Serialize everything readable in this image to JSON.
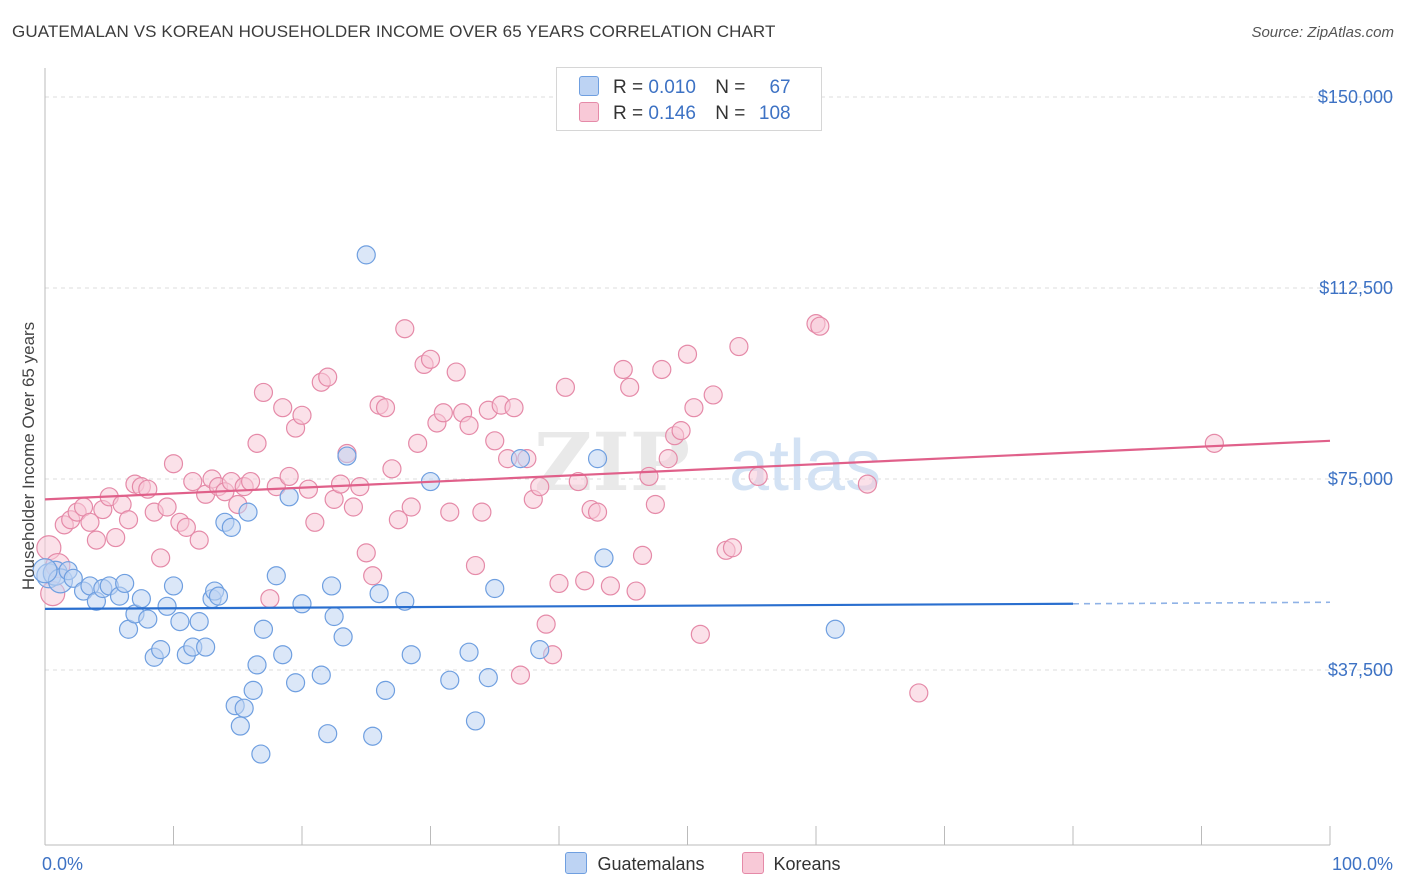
{
  "title": "GUATEMALAN VS KOREAN HOUSEHOLDER INCOME OVER 65 YEARS CORRELATION CHART",
  "source": "Source: ZipAtlas.com",
  "watermark": {
    "zip": "ZIP",
    "atlas": "atlas"
  },
  "legend_top": [
    {
      "r_label": "R =",
      "r_value": "0.010",
      "n_label": "N =",
      "n_value": "67",
      "color": "#6f9fe0",
      "fill": "#bdd3f3"
    },
    {
      "r_label": "R =",
      "r_value": "0.146",
      "n_label": "N =",
      "n_value": "108",
      "color": "#e58aa8",
      "fill": "#f8c9d7"
    }
  ],
  "chart_data": {
    "type": "scatter",
    "title": "GUATEMALAN VS KOREAN HOUSEHOLDER INCOME OVER 65 YEARS CORRELATION CHART",
    "xlabel": "",
    "ylabel": "Householder Income Over 65 years",
    "xlim": [
      0,
      100
    ],
    "ylim": [
      15000,
      157500
    ],
    "x_tick_labels": [
      "0.0%",
      "100.0%"
    ],
    "y_ticks": [
      37500,
      75000,
      112500,
      150000
    ],
    "y_tick_labels": [
      "$37,500",
      "$75,000",
      "$112,500",
      "$150,000"
    ],
    "legend_position": "bottom-center",
    "grid": true,
    "series": [
      {
        "name": "Guatemalans",
        "color": "#6f9fe0",
        "fill": "#bdd3f3",
        "trend": {
          "x0": 0,
          "y0": 49500,
          "x1": 80,
          "y1": 50500,
          "dash_to": 100,
          "dash_y": 50800
        },
        "points": [
          [
            0.3,
            56000
          ],
          [
            0.8,
            56500
          ],
          [
            1.2,
            55000
          ],
          [
            1.8,
            57000
          ],
          [
            2.2,
            55500
          ],
          [
            3.0,
            53000
          ],
          [
            3.5,
            54000
          ],
          [
            4.0,
            51000
          ],
          [
            4.5,
            53500
          ],
          [
            5.0,
            54000
          ],
          [
            5.8,
            52000
          ],
          [
            6.2,
            54500
          ],
          [
            6.5,
            45500
          ],
          [
            7.0,
            48500
          ],
          [
            7.5,
            51500
          ],
          [
            8.0,
            47500
          ],
          [
            8.5,
            40000
          ],
          [
            9.0,
            41500
          ],
          [
            9.5,
            50000
          ],
          [
            10.0,
            54000
          ],
          [
            10.5,
            47000
          ],
          [
            11.0,
            40500
          ],
          [
            11.5,
            42000
          ],
          [
            12.0,
            47000
          ],
          [
            12.5,
            42000
          ],
          [
            13.0,
            51500
          ],
          [
            13.2,
            53000
          ],
          [
            13.5,
            52000
          ],
          [
            14.0,
            66500
          ],
          [
            14.5,
            65500
          ],
          [
            14.8,
            30500
          ],
          [
            15.2,
            26500
          ],
          [
            15.5,
            30000
          ],
          [
            15.8,
            68500
          ],
          [
            16.2,
            33500
          ],
          [
            16.5,
            38500
          ],
          [
            16.8,
            21000
          ],
          [
            17.0,
            45500
          ],
          [
            18.0,
            56000
          ],
          [
            18.5,
            40500
          ],
          [
            19.0,
            71500
          ],
          [
            19.5,
            35000
          ],
          [
            20.0,
            50500
          ],
          [
            21.5,
            36500
          ],
          [
            22.0,
            25000
          ],
          [
            22.3,
            54000
          ],
          [
            22.5,
            48000
          ],
          [
            23.2,
            44000
          ],
          [
            23.5,
            79500
          ],
          [
            25.0,
            119000
          ],
          [
            25.5,
            24500
          ],
          [
            26.0,
            52500
          ],
          [
            26.5,
            33500
          ],
          [
            28.0,
            51000
          ],
          [
            28.5,
            40500
          ],
          [
            30.0,
            74500
          ],
          [
            31.5,
            35500
          ],
          [
            33.0,
            41000
          ],
          [
            33.5,
            27500
          ],
          [
            34.5,
            36000
          ],
          [
            35.0,
            53500
          ],
          [
            37.0,
            79000
          ],
          [
            38.5,
            41500
          ],
          [
            43.0,
            79000
          ],
          [
            43.5,
            59500
          ],
          [
            61.5,
            45500
          ],
          [
            0.0,
            57000
          ]
        ]
      },
      {
        "name": "Koreans",
        "color": "#e58aa8",
        "fill": "#f8c9d7",
        "trend": {
          "x0": 0,
          "y0": 71000,
          "x1": 100,
          "y1": 82500
        },
        "points": [
          [
            0.3,
            61500
          ],
          [
            0.6,
            52500
          ],
          [
            1.0,
            58000
          ],
          [
            1.5,
            66000
          ],
          [
            2.0,
            67000
          ],
          [
            2.5,
            68500
          ],
          [
            3.0,
            69500
          ],
          [
            3.5,
            66500
          ],
          [
            4.0,
            63000
          ],
          [
            4.5,
            69000
          ],
          [
            5.0,
            71500
          ],
          [
            5.5,
            63500
          ],
          [
            6.0,
            70000
          ],
          [
            6.5,
            67000
          ],
          [
            7.0,
            74000
          ],
          [
            7.5,
            73500
          ],
          [
            8.0,
            73000
          ],
          [
            8.5,
            68500
          ],
          [
            9.0,
            59500
          ],
          [
            9.5,
            69500
          ],
          [
            10.0,
            78000
          ],
          [
            10.5,
            66500
          ],
          [
            11.0,
            65500
          ],
          [
            11.5,
            74500
          ],
          [
            12.0,
            63000
          ],
          [
            12.5,
            72000
          ],
          [
            13.0,
            75000
          ],
          [
            13.5,
            73500
          ],
          [
            14.0,
            72500
          ],
          [
            14.5,
            74500
          ],
          [
            15.0,
            70000
          ],
          [
            15.5,
            73500
          ],
          [
            16.0,
            74500
          ],
          [
            16.5,
            82000
          ],
          [
            17.0,
            92000
          ],
          [
            17.5,
            51500
          ],
          [
            18.0,
            73500
          ],
          [
            18.5,
            89000
          ],
          [
            19.0,
            75500
          ],
          [
            19.5,
            85000
          ],
          [
            20.0,
            87500
          ],
          [
            20.5,
            73000
          ],
          [
            21.0,
            66500
          ],
          [
            21.5,
            94000
          ],
          [
            22.0,
            95000
          ],
          [
            22.5,
            71000
          ],
          [
            23.0,
            74000
          ],
          [
            23.5,
            80000
          ],
          [
            24.0,
            69500
          ],
          [
            24.5,
            73500
          ],
          [
            25.0,
            60500
          ],
          [
            25.5,
            56000
          ],
          [
            26.0,
            89500
          ],
          [
            26.5,
            89000
          ],
          [
            27.0,
            77000
          ],
          [
            27.5,
            67000
          ],
          [
            28.0,
            104500
          ],
          [
            28.5,
            69500
          ],
          [
            29.0,
            82000
          ],
          [
            29.5,
            97500
          ],
          [
            30.0,
            98500
          ],
          [
            30.5,
            86000
          ],
          [
            31.0,
            88000
          ],
          [
            31.5,
            68500
          ],
          [
            32.0,
            96000
          ],
          [
            32.5,
            88000
          ],
          [
            33.0,
            85500
          ],
          [
            33.5,
            58000
          ],
          [
            34.0,
            68500
          ],
          [
            34.5,
            88500
          ],
          [
            35.0,
            82500
          ],
          [
            35.5,
            89500
          ],
          [
            36.0,
            79000
          ],
          [
            36.5,
            89000
          ],
          [
            37.0,
            36500
          ],
          [
            37.5,
            79000
          ],
          [
            38.0,
            71000
          ],
          [
            38.5,
            73500
          ],
          [
            39.0,
            46500
          ],
          [
            39.5,
            40500
          ],
          [
            40.0,
            54500
          ],
          [
            40.5,
            93000
          ],
          [
            41.5,
            74500
          ],
          [
            42.0,
            55000
          ],
          [
            42.5,
            69000
          ],
          [
            43.0,
            68500
          ],
          [
            44.0,
            54000
          ],
          [
            45.0,
            96500
          ],
          [
            45.5,
            93000
          ],
          [
            46.0,
            53000
          ],
          [
            46.5,
            60000
          ],
          [
            47.0,
            75500
          ],
          [
            47.5,
            70000
          ],
          [
            48.0,
            96500
          ],
          [
            48.5,
            79000
          ],
          [
            49.0,
            83500
          ],
          [
            49.5,
            84500
          ],
          [
            50.0,
            99500
          ],
          [
            50.5,
            89000
          ],
          [
            51.0,
            44500
          ],
          [
            52.0,
            91500
          ],
          [
            53.0,
            61000
          ],
          [
            53.5,
            61500
          ],
          [
            54.0,
            101000
          ],
          [
            55.5,
            75500
          ],
          [
            60.0,
            105500
          ],
          [
            60.3,
            105000
          ],
          [
            64.0,
            74000
          ],
          [
            68.0,
            33000
          ],
          [
            91.0,
            82000
          ]
        ]
      }
    ]
  }
}
